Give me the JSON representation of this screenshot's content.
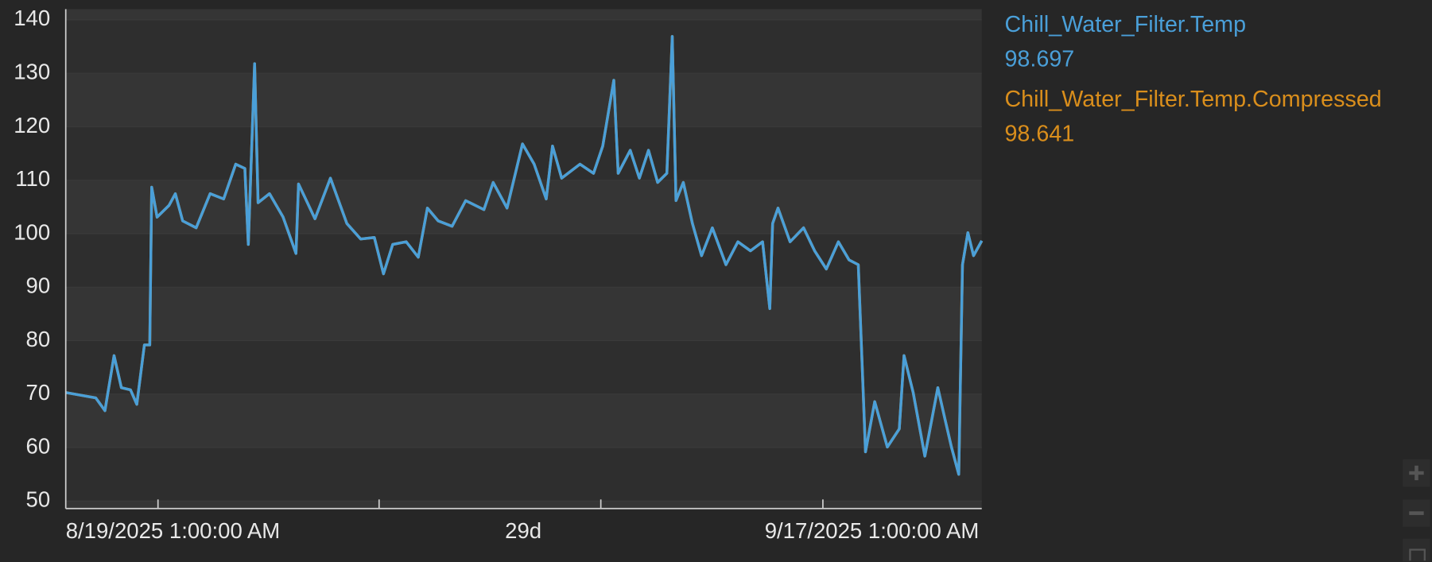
{
  "chart_data": {
    "type": "line",
    "x_start_label": "8/19/2025 1:00:00 AM",
    "duration_label": "29d",
    "x_end_label": "9/17/2025 1:00:00 AM",
    "xlim": [
      0,
      29
    ],
    "xticks": [
      2.92,
      9.92,
      16.94,
      23.97
    ],
    "ylim": [
      48.6,
      142
    ],
    "yticks": [
      50,
      60,
      70,
      80,
      90,
      100,
      110,
      120,
      130,
      140
    ],
    "grid": true,
    "series": [
      {
        "name": "Chill_Water_Filter.Temp.Compressed",
        "color": "#d98e1c",
        "current_value": 98.641,
        "x": [
          0,
          0.95,
          1.24,
          1.53,
          1.76,
          2.05,
          2.25,
          2.49,
          2.66,
          2.72,
          2.89,
          3.27,
          3.47,
          3.7,
          4.13,
          4.57,
          5.0,
          5.38,
          5.67,
          5.78,
          5.98,
          6.09,
          6.45,
          6.88,
          7.29,
          7.37,
          7.89,
          8.38,
          8.9,
          9.34,
          9.77,
          10.06,
          10.35,
          10.78,
          11.16,
          11.45,
          11.79,
          12.23,
          12.66,
          13.24,
          13.53,
          13.97,
          14.46,
          14.83,
          15.21,
          15.41,
          15.7,
          16.28,
          16.71,
          17.0,
          17.35,
          17.49,
          17.87,
          18.16,
          18.45,
          18.74,
          19.03,
          19.2,
          19.32,
          19.55,
          19.84,
          20.13,
          20.47,
          20.9,
          21.28,
          21.68,
          22.06,
          22.29,
          22.38,
          22.55,
          22.93,
          23.36,
          23.71,
          24.08,
          24.46,
          24.8,
          25.09,
          25.32,
          25.61,
          26.01,
          26.39,
          26.54,
          26.83,
          27.2,
          27.61,
          27.84,
          28.04,
          28.27,
          28.39,
          28.56,
          28.74,
          29.0
        ],
        "values": [
          70.3,
          69.3,
          66.9,
          77.2,
          71.2,
          70.8,
          68.1,
          79.2,
          79.2,
          108.7,
          103.1,
          105.3,
          107.5,
          102.4,
          101.1,
          107.5,
          106.5,
          113,
          112.2,
          98,
          131.8,
          105.8,
          107.5,
          103.1,
          96.3,
          109.3,
          102.8,
          110.4,
          101.9,
          99,
          99.3,
          92.5,
          98,
          98.5,
          95.6,
          104.8,
          102.4,
          101.4,
          106.2,
          104.5,
          109.6,
          104.8,
          116.8,
          113,
          106.5,
          116.4,
          110.4,
          113,
          111.3,
          116.4,
          128.7,
          111.3,
          115.6,
          110.4,
          115.6,
          109.6,
          111.3,
          136.9,
          106.2,
          109.6,
          101.9,
          95.9,
          101.1,
          94.2,
          98.5,
          96.8,
          98.5,
          86,
          101.9,
          104.8,
          98.5,
          101.1,
          96.8,
          93.4,
          98.5,
          95.1,
          94.2,
          59.2,
          68.6,
          60.1,
          63.5,
          77.2,
          70.3,
          58.4,
          71.2,
          65.2,
          60.1,
          55,
          94.2,
          100.2,
          95.9,
          98.64
        ]
      },
      {
        "name": "Chill_Water_Filter.Temp",
        "color": "#4a9fd8",
        "current_value": 98.697,
        "x": [
          0,
          0.95,
          1.24,
          1.53,
          1.76,
          2.05,
          2.25,
          2.49,
          2.66,
          2.72,
          2.89,
          3.27,
          3.47,
          3.7,
          4.13,
          4.57,
          5.0,
          5.38,
          5.67,
          5.78,
          5.98,
          6.09,
          6.45,
          6.88,
          7.29,
          7.37,
          7.89,
          8.38,
          8.9,
          9.34,
          9.77,
          10.06,
          10.35,
          10.78,
          11.16,
          11.45,
          11.79,
          12.23,
          12.66,
          13.24,
          13.53,
          13.97,
          14.46,
          14.83,
          15.21,
          15.41,
          15.7,
          16.28,
          16.71,
          17.0,
          17.35,
          17.49,
          17.87,
          18.16,
          18.45,
          18.74,
          19.03,
          19.2,
          19.32,
          19.55,
          19.84,
          20.13,
          20.47,
          20.9,
          21.28,
          21.68,
          22.06,
          22.29,
          22.38,
          22.55,
          22.93,
          23.36,
          23.71,
          24.08,
          24.46,
          24.8,
          25.09,
          25.32,
          25.61,
          26.01,
          26.39,
          26.54,
          26.83,
          27.2,
          27.61,
          27.84,
          28.04,
          28.27,
          28.39,
          28.56,
          28.74,
          29.0
        ],
        "values": [
          70.3,
          69.3,
          66.9,
          77.2,
          71.2,
          70.8,
          68.1,
          79.2,
          79.2,
          108.7,
          103.1,
          105.3,
          107.5,
          102.4,
          101.1,
          107.5,
          106.5,
          113,
          112.2,
          98,
          131.8,
          105.8,
          107.5,
          103.1,
          96.3,
          109.3,
          102.8,
          110.4,
          101.9,
          99,
          99.3,
          92.5,
          98,
          98.5,
          95.6,
          104.8,
          102.4,
          101.4,
          106.2,
          104.5,
          109.6,
          104.8,
          116.8,
          113,
          106.5,
          116.4,
          110.4,
          113,
          111.3,
          116.4,
          128.7,
          111.3,
          115.6,
          110.4,
          115.6,
          109.6,
          111.3,
          136.9,
          106.2,
          109.6,
          101.9,
          95.9,
          101.1,
          94.2,
          98.5,
          96.8,
          98.5,
          86,
          101.9,
          104.8,
          98.5,
          101.1,
          96.8,
          93.4,
          98.5,
          95.1,
          94.2,
          59.2,
          68.6,
          60.1,
          63.5,
          77.2,
          70.3,
          58.4,
          71.2,
          65.2,
          60.1,
          55,
          94.2,
          100.2,
          95.9,
          98.697
        ]
      }
    ]
  }
}
